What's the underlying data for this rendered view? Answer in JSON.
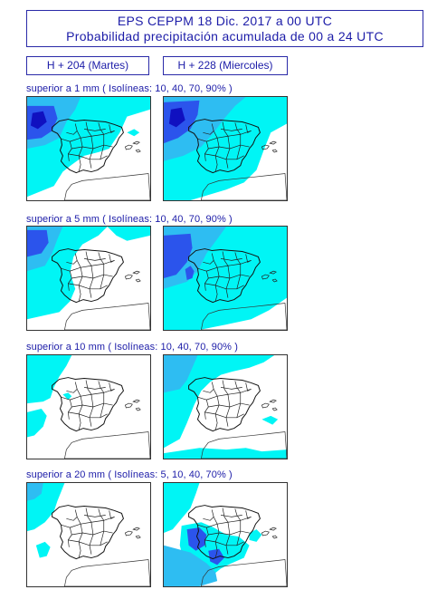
{
  "header": {
    "line1": "EPS   CEPPM    18 Dic. 2017   a    00 UTC",
    "line2": "Probabilidad precipitación acumulada de 00 a 24 UTC"
  },
  "columns": [
    {
      "label": "H + 204   (Martes)"
    },
    {
      "label": "H + 228   (Miercoles)"
    }
  ],
  "rows": [
    {
      "label": "superior a 1 mm    ( Isolíneas: 10, 40, 70, 90% )",
      "panels": [
        {
          "coverage": "high",
          "note": "cyan over most of west/north, blue over Galicia"
        },
        {
          "coverage": "high",
          "note": "cyan widespread, blue northwest"
        }
      ]
    },
    {
      "label": "superior a 5 mm    ( Isolíneas: 10, 40, 70, 90% )",
      "panels": [
        {
          "coverage": "medium",
          "note": "cyan over western and northern areas"
        },
        {
          "coverage": "medium-high",
          "note": "cyan widespread, blue along west coast"
        }
      ]
    },
    {
      "label": "superior a 10 mm   ( Isolíneas: 10, 40, 70, 90% )",
      "panels": [
        {
          "coverage": "low",
          "note": "cyan in northwest and southwest"
        },
        {
          "coverage": "medium",
          "note": "cyan in north and west"
        }
      ]
    },
    {
      "label": "superior a 20 mm   ( Isolíneas: 5, 10, 40, 70% )",
      "panels": [
        {
          "coverage": "low",
          "note": "cyan in northwest"
        },
        {
          "coverage": "medium",
          "note": "cyan and blue over west and south"
        }
      ]
    }
  ],
  "colors": {
    "text": "#1c1ca8",
    "cyan": "#00f5f5",
    "lightblue": "#2ebdf2",
    "blue": "#2b54ec",
    "darkblue": "#1010c0"
  }
}
